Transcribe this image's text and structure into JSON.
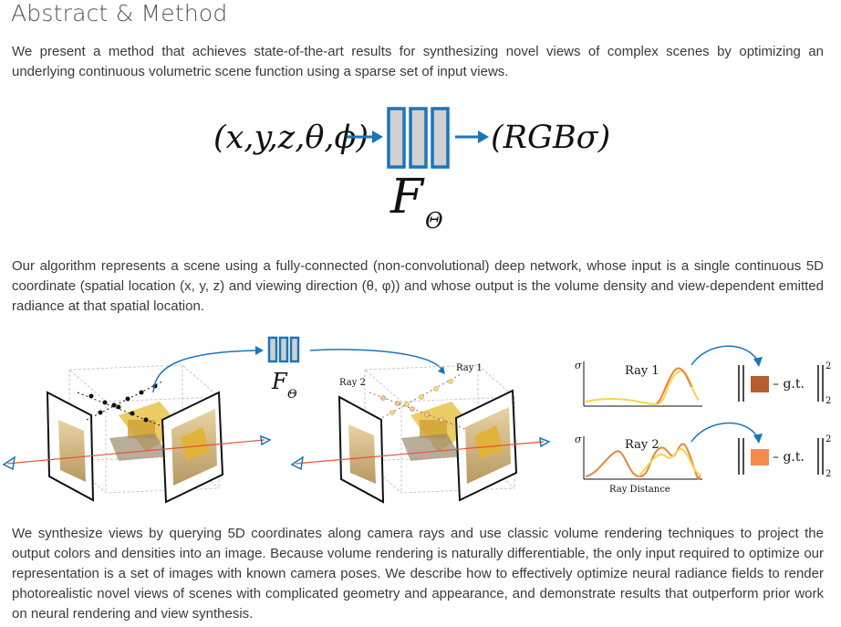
{
  "heading": "Abstract & Method",
  "paragraphs": {
    "intro": "We present a method that achieves state-of-the-art results for synthesizing novel views of complex scenes by optimizing an underlying continuous volumetric scene function using a sparse set of input views.",
    "algorithm": "Our algorithm represents a scene using a fully-connected (non-convolutional) deep network, whose input is a single continuous 5D coordinate (spatial location (x, y, z) and viewing direction (θ, φ)) and whose output is the volume density and view-dependent emitted radiance at that spatial location.",
    "synthesis": "We synthesize views by querying 5D coordinates along camera rays and use classic volume rendering techniques to project the output colors and densities into an image. Because volume rendering is naturally differentiable, the only input required to optimize our representation is a set of images with known camera poses. We describe how to effectively optimize neural radiance fields to render photorealistic novel views of scenes with complicated geometry and appearance, and demonstrate results that outperform prior work on neural rendering and view synthesis."
  },
  "figure1": {
    "input": "(x,y,z,θ,ϕ)",
    "output": "(RGBσ)",
    "network": "F",
    "network_sub": "Θ"
  },
  "figure2": {
    "network": "F",
    "network_sub": "Θ",
    "ray1": "Ray 1",
    "ray2": "Ray 2",
    "plot_ray1": "Ray 1",
    "plot_ray2": "Ray 2",
    "sigma": "σ",
    "xaxis": "Ray Distance",
    "gt": "– g.t.",
    "norm_sup": "2",
    "norm_sub": "2"
  },
  "colors": {
    "accent": "#1a75bb",
    "block_fill": "#d0d0d0",
    "ray": "#e8542f",
    "gt1": "#b85c32",
    "gt2": "#f28c4e",
    "curve_yellow": "#f5d54a",
    "curve_orange": "#e8853a"
  }
}
